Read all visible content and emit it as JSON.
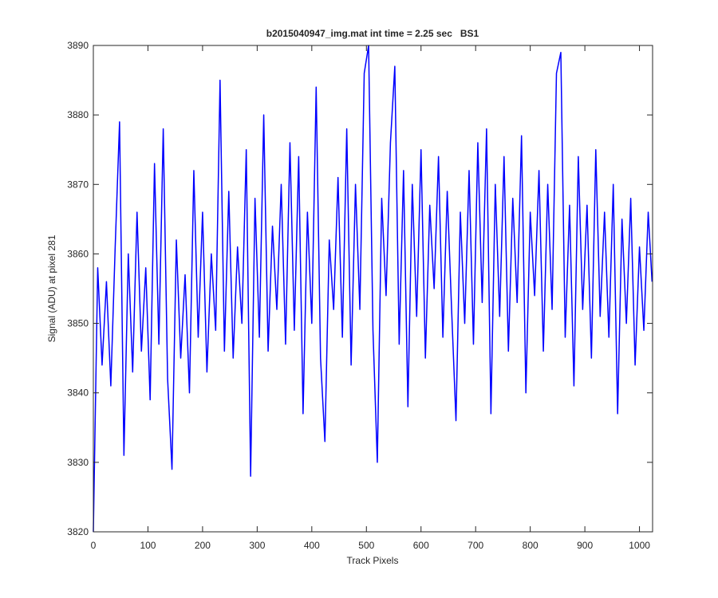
{
  "chart_data": {
    "type": "line",
    "title": "b2015040947_img.mat int time = 2.25 sec   BS1",
    "xlabel": "Track Pixels",
    "ylabel": "Signal (ADU) at pixel 281",
    "color": "#0000ff",
    "x": [
      0,
      8,
      16,
      24,
      32,
      40,
      48,
      56,
      64,
      72,
      80,
      88,
      96,
      104,
      112,
      120,
      128,
      136,
      144,
      152,
      160,
      168,
      176,
      184,
      192,
      200,
      208,
      216,
      224,
      232,
      240,
      248,
      256,
      264,
      272,
      280,
      288,
      296,
      304,
      312,
      320,
      328,
      336,
      344,
      352,
      360,
      368,
      376,
      384,
      392,
      400,
      408,
      416,
      424,
      432,
      440,
      448,
      456,
      464,
      472,
      480,
      488,
      496,
      504,
      512,
      520,
      528,
      536,
      544,
      552,
      560,
      568,
      576,
      584,
      592,
      600,
      608,
      616,
      624,
      632,
      640,
      648,
      656,
      664,
      672,
      680,
      688,
      696,
      704,
      712,
      720,
      728,
      736,
      744,
      752,
      760,
      768,
      776,
      784,
      792,
      800,
      808,
      816,
      824,
      832,
      840,
      848,
      856,
      864,
      872,
      880,
      888,
      896,
      904,
      912,
      920,
      928,
      936,
      944,
      952,
      960,
      968,
      976,
      984,
      992,
      1000,
      1008,
      1016,
      1023
    ],
    "values": [
      3820,
      3858,
      3844,
      3856,
      3841,
      3861,
      3879,
      3831,
      3860,
      3843,
      3866,
      3846,
      3858,
      3839,
      3873,
      3847,
      3878,
      3842,
      3829,
      3862,
      3845,
      3857,
      3840,
      3872,
      3848,
      3866,
      3843,
      3860,
      3849,
      3885,
      3846,
      3869,
      3845,
      3861,
      3850,
      3875,
      3828,
      3868,
      3848,
      3880,
      3846,
      3864,
      3852,
      3870,
      3847,
      3876,
      3849,
      3874,
      3837,
      3866,
      3850,
      3884,
      3845,
      3833,
      3862,
      3852,
      3871,
      3848,
      3878,
      3844,
      3870,
      3852,
      3886,
      3890,
      3849,
      3830,
      3868,
      3854,
      3876,
      3887,
      3847,
      3872,
      3838,
      3870,
      3851,
      3875,
      3845,
      3867,
      3855,
      3874,
      3848,
      3869,
      3852,
      3836,
      3866,
      3850,
      3872,
      3847,
      3876,
      3853,
      3878,
      3837,
      3870,
      3851,
      3874,
      3846,
      3868,
      3853,
      3877,
      3840,
      3866,
      3854,
      3872,
      3846,
      3870,
      3852,
      3886,
      3889,
      3848,
      3867,
      3841,
      3874,
      3852,
      3867,
      3845,
      3875,
      3851,
      3866,
      3848,
      3870,
      3837,
      3865,
      3850,
      3868,
      3844,
      3861,
      3849,
      3866,
      3856
    ],
    "xlim": [
      0,
      1024
    ],
    "ylim": [
      3820,
      3890
    ],
    "xticks": [
      0,
      100,
      200,
      300,
      400,
      500,
      600,
      700,
      800,
      900,
      1000
    ],
    "yticks": [
      3820,
      3830,
      3840,
      3850,
      3860,
      3870,
      3880,
      3890
    ],
    "grid": false
  }
}
